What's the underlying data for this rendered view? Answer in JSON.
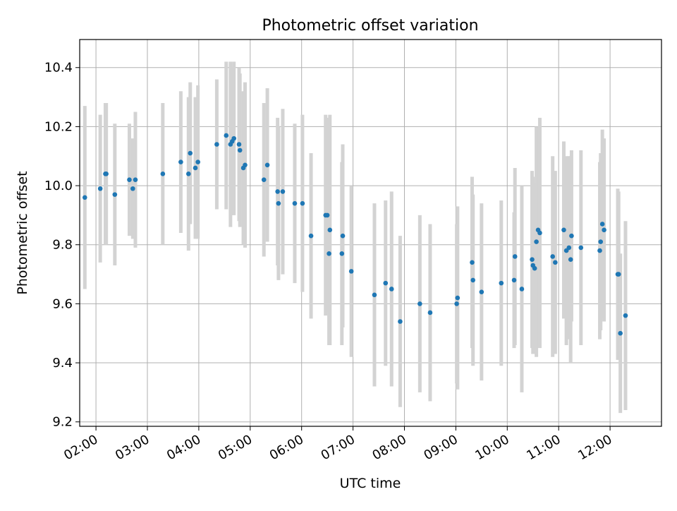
{
  "chart_data": {
    "type": "scatter",
    "title": "Photometric offset variation",
    "xlabel": "UTC time",
    "ylabel": "Photometric offset",
    "xlim": [
      "01:41",
      "13:00"
    ],
    "ylim": [
      9.185,
      10.495
    ],
    "x_ticks": [
      "02:00",
      "03:00",
      "04:00",
      "05:00",
      "06:00",
      "07:00",
      "08:00",
      "09:00",
      "10:00",
      "11:00",
      "12:00"
    ],
    "y_ticks": [
      9.2,
      9.4,
      9.6,
      9.8,
      10.0,
      10.2,
      10.4
    ],
    "y_tick_labels": [
      "9.2",
      "9.4",
      "9.6",
      "9.8",
      "10.0",
      "10.2",
      "10.4"
    ],
    "grid": true,
    "colors": {
      "marker": "#1f77b4",
      "errorbar": "#d3d3d3",
      "grid": "#b0b0b0"
    },
    "series": [
      {
        "x": [
          "01:47",
          "02:05",
          "02:11",
          "02:12",
          "02:22",
          "02:39",
          "02:43",
          "02:46",
          "03:18",
          "03:39",
          "03:48",
          "03:50",
          "03:56",
          "03:59",
          "04:21",
          "04:32",
          "04:37",
          "04:39",
          "04:41",
          "04:47",
          "04:48",
          "04:52",
          "04:54",
          "05:16",
          "05:20",
          "05:32",
          "05:33",
          "05:38",
          "05:52",
          "06:01",
          "06:11",
          "06:28",
          "06:30",
          "06:32",
          "06:33",
          "06:47",
          "06:48",
          "06:58",
          "07:25",
          "07:38",
          "07:45",
          "07:55",
          "08:18",
          "08:30",
          "09:01",
          "09:02",
          "09:19",
          "09:20",
          "09:30",
          "09:53",
          "10:08",
          "10:09",
          "10:17",
          "10:29",
          "10:30",
          "10:32",
          "10:34",
          "10:36",
          "10:38",
          "10:53",
          "10:56",
          "11:06",
          "11:09",
          "11:12",
          "11:14",
          "11:15",
          "11:26",
          "11:48",
          "11:49",
          "11:51",
          "11:53",
          "12:09",
          "12:10",
          "12:12",
          "12:18"
        ],
        "y": [
          9.96,
          9.99,
          10.04,
          10.04,
          9.97,
          10.02,
          9.99,
          10.02,
          10.04,
          10.08,
          10.04,
          10.11,
          10.06,
          10.08,
          10.14,
          10.17,
          10.14,
          10.15,
          10.16,
          10.14,
          10.12,
          10.06,
          10.07,
          10.02,
          10.07,
          9.98,
          9.94,
          9.98,
          9.94,
          9.94,
          9.83,
          9.9,
          9.9,
          9.77,
          9.85,
          9.77,
          9.83,
          9.71,
          9.63,
          9.67,
          9.65,
          9.54,
          9.6,
          9.57,
          9.6,
          9.62,
          9.74,
          9.68,
          9.64,
          9.67,
          9.68,
          9.76,
          9.65,
          9.75,
          9.73,
          9.72,
          9.81,
          9.85,
          9.84,
          9.76,
          9.74,
          9.85,
          9.78,
          9.79,
          9.75,
          9.83,
          9.79,
          9.78,
          9.81,
          9.87,
          9.85,
          9.7,
          9.7,
          9.5,
          9.56
        ],
        "yerr": [
          0.31,
          0.25,
          0.24,
          0.24,
          0.24,
          0.19,
          0.17,
          0.23,
          0.24,
          0.24,
          0.26,
          0.24,
          0.24,
          0.26,
          0.22,
          0.25,
          0.28,
          0.25,
          0.26,
          0.26,
          0.26,
          0.26,
          0.28,
          0.26,
          0.26,
          0.25,
          0.26,
          0.28,
          0.27,
          0.3,
          0.28,
          0.34,
          0.33,
          0.31,
          0.39,
          0.31,
          0.31,
          0.29,
          0.31,
          0.28,
          0.33,
          0.29,
          0.3,
          0.3,
          0.27,
          0.31,
          0.29,
          0.29,
          0.3,
          0.28,
          0.23,
          0.3,
          0.35,
          0.3,
          0.3,
          0.29,
          0.39,
          0.33,
          0.39,
          0.34,
          0.31,
          0.3,
          0.32,
          0.31,
          0.35,
          0.29,
          0.33,
          0.3,
          0.3,
          0.32,
          0.31,
          0.29,
          0.28,
          0.27,
          0.32
        ]
      }
    ]
  }
}
